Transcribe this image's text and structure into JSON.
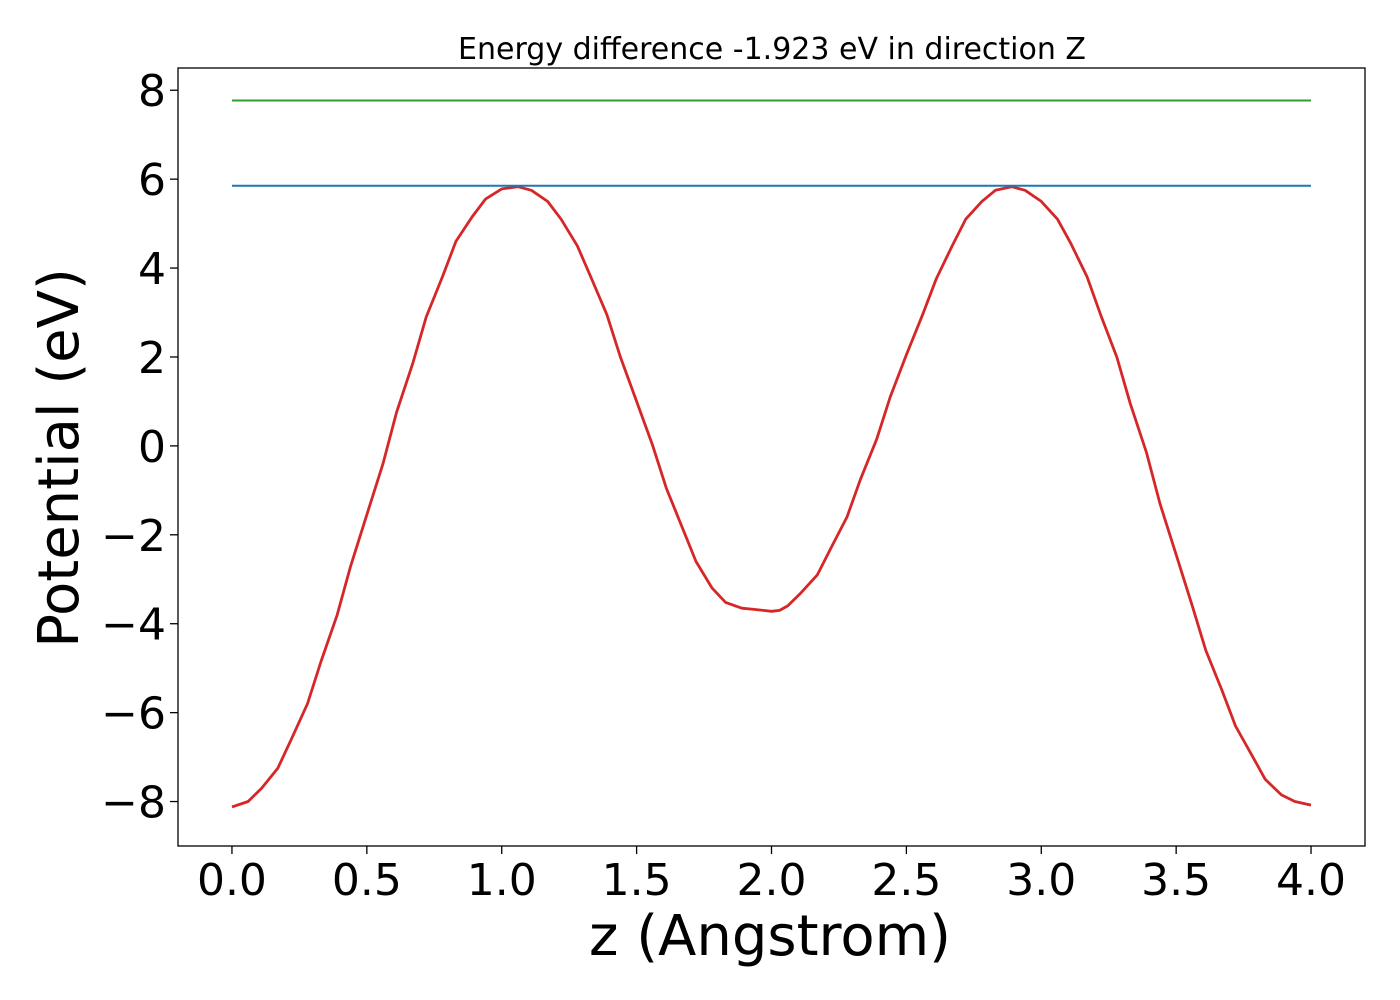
{
  "chart_data": {
    "type": "line",
    "title": "Energy difference -1.923 eV in direction Z",
    "xlabel": "z (Angstrom)",
    "ylabel": "Potential (eV)",
    "xlim": [
      -0.2,
      4.2
    ],
    "ylim": [
      -9,
      8.5
    ],
    "xticks": [
      0.0,
      0.5,
      1.0,
      1.5,
      2.0,
      2.5,
      3.0,
      3.5,
      4.0
    ],
    "xtick_labels": [
      "0.0",
      "0.5",
      "1.0",
      "1.5",
      "2.0",
      "2.5",
      "3.0",
      "3.5",
      "4.0"
    ],
    "yticks": [
      8,
      6,
      4,
      2,
      0,
      -2,
      -4,
      -6,
      -8
    ],
    "ytick_labels": [
      "8",
      "6",
      "4",
      "2",
      "0",
      "−2",
      "−4",
      "−6",
      "−8"
    ],
    "grid": false,
    "series": [
      {
        "color": "#d62728",
        "x": [
          0.0,
          0.06,
          0.11,
          0.17,
          0.22,
          0.28,
          0.33,
          0.39,
          0.44,
          0.5,
          0.56,
          0.61,
          0.67,
          0.72,
          0.78,
          0.83,
          0.89,
          0.94,
          1.0,
          1.06,
          1.11,
          1.17,
          1.22,
          1.28,
          1.33,
          1.39,
          1.44,
          1.5,
          1.56,
          1.61,
          1.67,
          1.72,
          1.78,
          1.83,
          1.89,
          1.94,
          2.0,
          2.03,
          2.06,
          2.11,
          2.17,
          2.22,
          2.28,
          2.33,
          2.39,
          2.44,
          2.5,
          2.56,
          2.61,
          2.67,
          2.72,
          2.78,
          2.83,
          2.89,
          2.94,
          3.0,
          3.06,
          3.11,
          3.17,
          3.22,
          3.28,
          3.33,
          3.39,
          3.44,
          3.5,
          3.56,
          3.61,
          3.67,
          3.72,
          3.78,
          3.83,
          3.89,
          3.94,
          4.0
        ],
        "y": [
          -8.12,
          -8.0,
          -7.7,
          -7.25,
          -6.6,
          -5.8,
          -4.85,
          -3.8,
          -2.7,
          -1.55,
          -0.4,
          0.75,
          1.85,
          2.9,
          3.8,
          4.6,
          5.15,
          5.55,
          5.78,
          5.83,
          5.75,
          5.5,
          5.1,
          4.5,
          3.8,
          2.95,
          2.0,
          1.0,
          0.0,
          -0.95,
          -1.85,
          -2.6,
          -3.2,
          -3.52,
          -3.65,
          -3.68,
          -3.72,
          -3.7,
          -3.6,
          -3.3,
          -2.9,
          -2.3,
          -1.6,
          -0.75,
          0.15,
          1.1,
          2.05,
          2.95,
          3.75,
          4.5,
          5.1,
          5.5,
          5.75,
          5.83,
          5.75,
          5.5,
          5.1,
          4.55,
          3.8,
          2.95,
          2.0,
          0.95,
          -0.15,
          -1.3,
          -2.45,
          -3.6,
          -4.6,
          -5.5,
          -6.3,
          -6.95,
          -7.5,
          -7.85,
          -8.0,
          -8.08
        ]
      },
      {
        "color": "#1f77b4",
        "x": [
          0.0,
          4.0
        ],
        "y": [
          5.85,
          5.85
        ]
      },
      {
        "color": "#2ca02c",
        "x": [
          0.0,
          4.0
        ],
        "y": [
          7.77,
          7.77
        ]
      }
    ]
  }
}
